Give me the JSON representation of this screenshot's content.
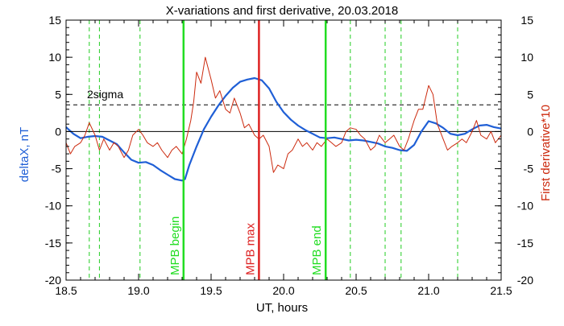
{
  "chart_data": {
    "type": "line",
    "title": "X-variations and first derivative, 20.03.2018",
    "xlabel": "UT, hours",
    "ylabel_left": "deltaX, nT",
    "ylabel_right": "First derivative*10",
    "xlim": [
      18.5,
      21.5
    ],
    "ylim_left": [
      -20,
      15
    ],
    "ylim_right": [
      -20,
      15
    ],
    "x_ticks": [
      "18.5",
      "19.0",
      "19.5",
      "20.0",
      "20.5",
      "21.0",
      "21.5"
    ],
    "y_ticks_left": [
      "15",
      "10",
      "5",
      "0",
      "-5",
      "-10",
      "-15",
      "-20"
    ],
    "y_ticks_right": [
      "15",
      "10",
      "5",
      "0",
      "-5",
      "-10",
      "-15",
      "-20"
    ],
    "grid": false,
    "zero_line": 0,
    "threshold": {
      "label": "2sigma",
      "value": 3.6,
      "color": "#000000"
    },
    "series": [
      {
        "axis": "left",
        "color": "#1f5fd6",
        "x": [
          18.5,
          18.55,
          18.6,
          18.65,
          18.7,
          18.75,
          18.8,
          18.85,
          18.9,
          18.95,
          19.0,
          19.05,
          19.1,
          19.15,
          19.2,
          19.25,
          19.3,
          19.32,
          19.35,
          19.4,
          19.45,
          19.5,
          19.55,
          19.6,
          19.65,
          19.7,
          19.75,
          19.8,
          19.85,
          19.9,
          19.95,
          20.0,
          20.05,
          20.1,
          20.15,
          20.2,
          20.25,
          20.3,
          20.35,
          20.4,
          20.45,
          20.5,
          20.55,
          20.6,
          20.65,
          20.7,
          20.75,
          20.8,
          20.85,
          20.9,
          20.95,
          21.0,
          21.05,
          21.1,
          21.15,
          21.2,
          21.25,
          21.3,
          21.35,
          21.4,
          21.45,
          21.5
        ],
        "y": [
          0.6,
          -0.3,
          -0.9,
          -0.7,
          -0.6,
          -0.7,
          -1.2,
          -1.7,
          -2.8,
          -3.8,
          -4.2,
          -4.1,
          -4.5,
          -5.2,
          -5.8,
          -6.4,
          -6.6,
          -6.4,
          -4.5,
          -2.0,
          0.3,
          2.0,
          3.5,
          4.8,
          5.9,
          6.7,
          7.0,
          7.2,
          6.9,
          5.8,
          4.0,
          2.6,
          1.6,
          0.8,
          0.2,
          -0.3,
          -0.8,
          -0.9,
          -0.8,
          -1.0,
          -1.2,
          -1.1,
          -1.2,
          -1.4,
          -1.6,
          -2.0,
          -2.2,
          -2.5,
          -2.6,
          -1.8,
          0.0,
          1.4,
          1.1,
          0.5,
          -0.3,
          -0.5,
          -0.3,
          0.3,
          0.8,
          0.9,
          0.6,
          0.4
        ]
      },
      {
        "axis": "right",
        "color": "#cc2a0e",
        "x": [
          18.5,
          18.53,
          18.56,
          18.6,
          18.63,
          18.66,
          18.7,
          18.73,
          18.76,
          18.8,
          18.83,
          18.86,
          18.9,
          18.93,
          18.96,
          19.0,
          19.03,
          19.06,
          19.1,
          19.13,
          19.16,
          19.2,
          19.23,
          19.26,
          19.3,
          19.33,
          19.36,
          19.38,
          19.4,
          19.43,
          19.46,
          19.5,
          19.53,
          19.56,
          19.6,
          19.63,
          19.66,
          19.7,
          19.73,
          19.76,
          19.8,
          19.83,
          19.86,
          19.9,
          19.93,
          19.96,
          20.0,
          20.03,
          20.06,
          20.1,
          20.13,
          20.16,
          20.2,
          20.23,
          20.26,
          20.3,
          20.33,
          20.36,
          20.4,
          20.43,
          20.46,
          20.5,
          20.53,
          20.56,
          20.6,
          20.63,
          20.66,
          20.7,
          20.73,
          20.76,
          20.8,
          20.83,
          20.86,
          20.9,
          20.93,
          20.96,
          21.0,
          21.03,
          21.06,
          21.1,
          21.13,
          21.16,
          21.2,
          21.23,
          21.26,
          21.3,
          21.33,
          21.36,
          21.4,
          21.43,
          21.46,
          21.5
        ],
        "y": [
          -1.5,
          -3.0,
          -2.0,
          -1.5,
          -0.5,
          1.2,
          -0.5,
          -2.5,
          -1.0,
          -2.5,
          -1.5,
          -2.0,
          -3.5,
          -2.5,
          -0.5,
          0.3,
          -0.5,
          -1.5,
          -2.0,
          -1.5,
          -2.5,
          -3.5,
          -2.5,
          -2.0,
          -3.0,
          -1.0,
          1.5,
          4.0,
          8.0,
          6.5,
          10.0,
          7.0,
          4.5,
          5.5,
          3.0,
          2.5,
          4.5,
          2.5,
          0.5,
          1.0,
          -0.5,
          -1.0,
          -0.5,
          -2.0,
          -5.5,
          -4.5,
          -5.0,
          -3.0,
          -2.5,
          -1.0,
          -2.0,
          -1.5,
          -2.5,
          -1.5,
          -2.0,
          -1.0,
          -1.5,
          -2.0,
          -1.5,
          0.0,
          0.5,
          0.3,
          -0.5,
          -1.0,
          -2.5,
          -2.0,
          -0.5,
          -1.5,
          -1.0,
          -0.5,
          -2.0,
          -2.5,
          -1.0,
          1.5,
          3.0,
          3.0,
          6.2,
          5.0,
          1.0,
          -1.0,
          -2.5,
          -2.0,
          -1.5,
          -1.0,
          -1.5,
          0.0,
          1.5,
          -0.5,
          -1.0,
          0.0,
          -1.5,
          -0.5
        ]
      }
    ],
    "markers": [
      {
        "label": "MPB begin",
        "x": 19.31,
        "color": "#22dd22"
      },
      {
        "label": "MPB max",
        "x": 19.83,
        "color": "#dd2222"
      },
      {
        "label": "MPB end",
        "x": 20.29,
        "color": "#22dd22"
      }
    ],
    "dashed_lines": {
      "color": "#22cc22",
      "x": [
        18.66,
        18.73,
        19.01,
        20.46,
        20.7,
        20.81,
        21.2
      ]
    }
  }
}
